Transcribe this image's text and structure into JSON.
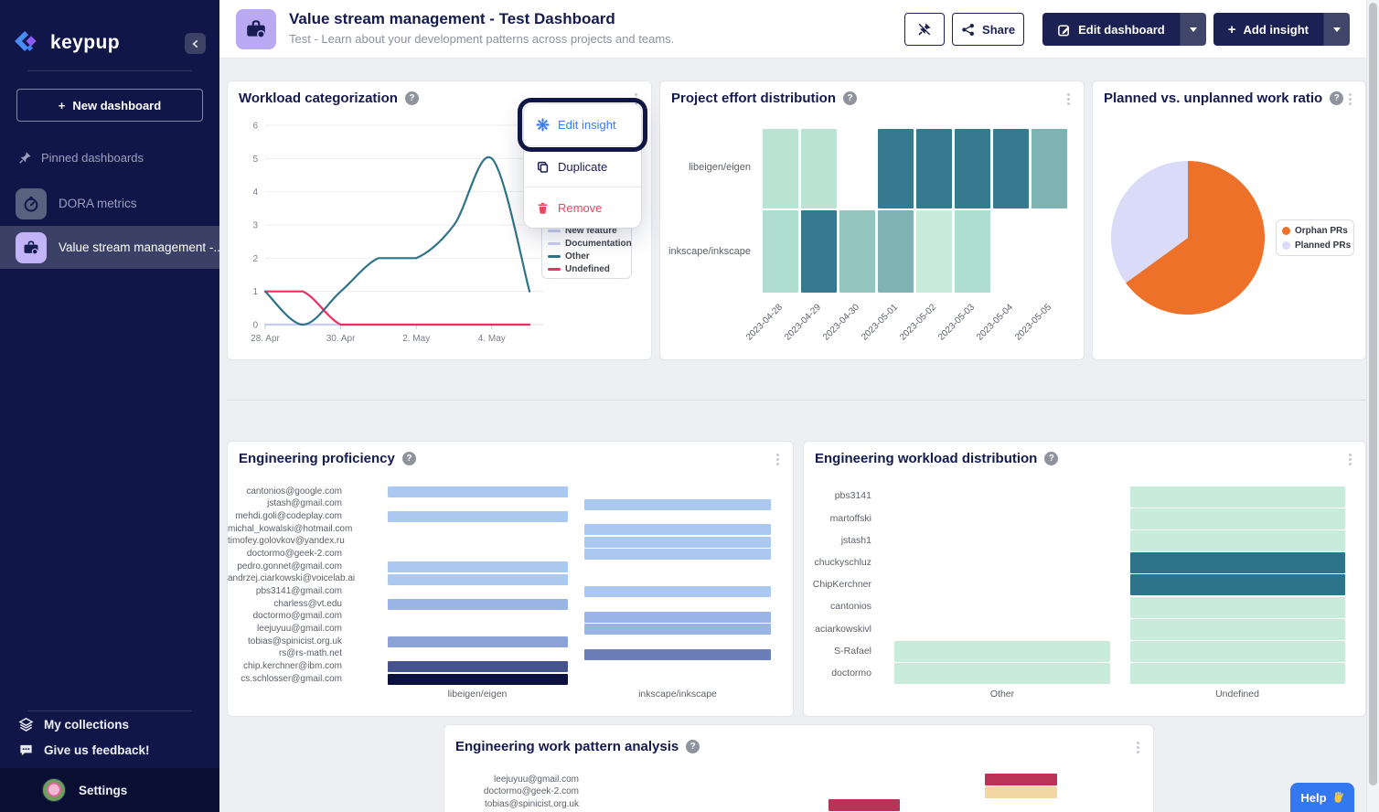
{
  "icons": {
    "help": "?",
    "plus": "+",
    "collapse": "‹",
    "logo": "keypup-logo",
    "pin": "pin-icon",
    "unpin": "unpin-icon",
    "share": "share-icon",
    "edit": "edit-pencil-icon",
    "caret": "caret-down",
    "kebab": "kebab-dots",
    "gear": "gear-icon",
    "copy": "copy-icon",
    "trash": "trash-icon",
    "briefcase": "briefcase-gear-icon",
    "gauge": "gauge-icon",
    "layers": "layers-icon",
    "chat": "chat-bubble-icon",
    "wave": "waving-hand"
  },
  "colors": {
    "sidebar_bg": "#111649",
    "sidebar_selected": "#3a4066",
    "navy": "#1b2253",
    "accent_blue": "#3b7df0",
    "danger_red": "#e8485f",
    "purple_tile": "#c3b3f7"
  },
  "sidebar": {
    "brand": "keypup",
    "new_dashboard": "New dashboard",
    "pinned_section": "Pinned dashboards",
    "items": [
      {
        "label": "DORA metrics",
        "selected": false
      },
      {
        "label": "Value stream management -...",
        "selected": true
      }
    ],
    "footer_items": [
      {
        "label": "My collections"
      },
      {
        "label": "Give us feedback!"
      }
    ],
    "settings": "Settings"
  },
  "header": {
    "title": "Value stream management - Test Dashboard",
    "subtitle": "Test - Learn about your development patterns across projects and teams.",
    "share": "Share",
    "edit_dashboard": "Edit dashboard",
    "add_insight": "Add insight"
  },
  "context_menu": {
    "items": [
      {
        "label": "Edit insight",
        "color": "#3b7df0"
      },
      {
        "label": "Duplicate",
        "color": "#171d50"
      },
      {
        "label": "Remove",
        "color": "#e8485f"
      }
    ]
  },
  "help_button": {
    "label": "Help",
    "emoji": "👋"
  },
  "chart_data": [
    {
      "id": "workload-categorization",
      "type": "line",
      "title": "Workload categorization",
      "x": [
        "2023-04-28",
        "2023-04-29",
        "2023-04-30",
        "2023-05-01",
        "2023-05-02",
        "2023-05-03",
        "2023-05-04",
        "2023-05-05"
      ],
      "x_tick_labels": {
        "0": "28. Apr",
        "2": "30. Apr",
        "4": "2. May",
        "6": "4. May"
      },
      "ylim": [
        0,
        6
      ],
      "yticks": [
        0,
        1,
        2,
        3,
        4,
        5,
        6
      ],
      "grid": true,
      "legend_position": "right",
      "series": [
        {
          "name": "New feature",
          "color": "#c9cdf4",
          "values": [
            0,
            0,
            0,
            0,
            0,
            0,
            0,
            0
          ]
        },
        {
          "name": "Documentation",
          "color": "#c9cdf4",
          "values": [
            0,
            0,
            0,
            0,
            0,
            0,
            0,
            0
          ]
        },
        {
          "name": "Other",
          "color": "#2e7389",
          "values": [
            1,
            0,
            1,
            2,
            2,
            3,
            5,
            1
          ]
        },
        {
          "name": "Undefined",
          "color": "#e9305f",
          "values": [
            1,
            1,
            0,
            0,
            0,
            0,
            0,
            0
          ]
        }
      ]
    },
    {
      "id": "project-effort-distribution",
      "type": "heatmap",
      "title": "Project effort distribution",
      "rows": [
        "libeigen/eigen",
        "inkscape/inkscape"
      ],
      "columns": [
        "2023-04-28",
        "2023-04-29",
        "2023-04-30",
        "2023-05-01",
        "2023-05-02",
        "2023-05-03",
        "2023-05-04",
        "2023-05-05"
      ],
      "palette": {
        "mint1": "#c9ebdc",
        "mint2": "#bbe3d4",
        "mint3": "#afddd0",
        "med1": "#93c6be",
        "med2": "#7fb2b3",
        "dark": "#377a8f"
      },
      "cells": [
        [
          "mint2",
          "mint2",
          null,
          "dark",
          "dark",
          "dark",
          "dark",
          "med2"
        ],
        [
          "mint3",
          "dark",
          "med1",
          "med2",
          "mint1",
          "mint3",
          null,
          null
        ]
      ]
    },
    {
      "id": "planned-vs-unplanned",
      "type": "pie",
      "title": "Planned vs. unplanned work ratio",
      "legend_position": "right",
      "slices": [
        {
          "label": "Orphan PRs",
          "color": "#ed7128",
          "percent": 65
        },
        {
          "label": "Planned PRs",
          "color": "#d9dbf8",
          "percent": 35
        }
      ]
    },
    {
      "id": "engineering-proficiency",
      "type": "heatmap",
      "title": "Engineering proficiency",
      "columns": [
        "libeigen/eigen",
        "inkscape/inkscape"
      ],
      "rows": [
        "cantonios@google.com",
        "jstash@gmail.com",
        "mehdi.goli@codeplay.com",
        "michal_kowalski@hotmail.com",
        "timofey.golovkov@yandex.ru",
        "doctormo@geek-2.com",
        "pedro.gonnet@gmail.com",
        "andrzej.ciarkowski@voicelab.ai",
        "pbs3141@gmail.com",
        "charless@vt.edu",
        "doctormo@gmail.com",
        "leejuyuu@gmail.com",
        "tobias@spinicist.org.uk",
        "rs@rs-math.net",
        "chip.kerchner@ibm.com",
        "cs.schlosser@gmail.com"
      ],
      "palette": {
        "b1": "#abc8f1",
        "b2": "#9ab4e6",
        "b3": "#8ba3d6",
        "b4": "#6b7eb8",
        "b5": "#47538e",
        "b6": "#0d1140"
      },
      "cells": [
        [
          "b1",
          null
        ],
        [
          null,
          "b1"
        ],
        [
          "b1",
          null
        ],
        [
          null,
          "b1"
        ],
        [
          null,
          "b1"
        ],
        [
          null,
          "b1"
        ],
        [
          "b1",
          null
        ],
        [
          "b1",
          null
        ],
        [
          null,
          "b1"
        ],
        [
          "b2",
          null
        ],
        [
          null,
          "b2"
        ],
        [
          null,
          "b2"
        ],
        [
          "b3",
          null
        ],
        [
          null,
          "b4"
        ],
        [
          "b5",
          null
        ],
        [
          "b6",
          null
        ]
      ]
    },
    {
      "id": "engineering-workload-distribution",
      "type": "heatmap",
      "title": "Engineering workload distribution",
      "columns": [
        "Other",
        "Undefined"
      ],
      "rows": [
        "pbs3141",
        "martoffski",
        "jstash1",
        "chuckyschluz",
        "ChipKerchner",
        "cantonios",
        "aciarkowskivl",
        "S-Rafael",
        "doctormo"
      ],
      "palette": {
        "mint": "#c8ebdb",
        "dark": "#2d7389"
      },
      "cells": [
        [
          null,
          "mint"
        ],
        [
          null,
          "mint"
        ],
        [
          null,
          "mint"
        ],
        [
          null,
          "dark"
        ],
        [
          null,
          "dark"
        ],
        [
          null,
          "mint"
        ],
        [
          null,
          "mint"
        ],
        [
          "mint",
          "mint"
        ],
        [
          "mint",
          "mint"
        ]
      ]
    },
    {
      "id": "engineering-work-pattern",
      "type": "heatmap",
      "title": "Engineering work pattern analysis",
      "rows": [
        "leejuyuu@gmail.com",
        "doctormo@geek-2.com",
        "tobias@spinicist.org.uk"
      ],
      "palette": {
        "crimson": "#b93356",
        "tan": "#f2d7a2"
      },
      "bars": [
        {
          "row": 0,
          "col": 1,
          "color": "crimson"
        },
        {
          "row": 1,
          "col": 1,
          "color": "tan"
        },
        {
          "row": 2,
          "col": 0,
          "color": "crimson"
        },
        {
          "row": 3,
          "col": 0,
          "color": "tan"
        }
      ],
      "truncated": true
    }
  ]
}
